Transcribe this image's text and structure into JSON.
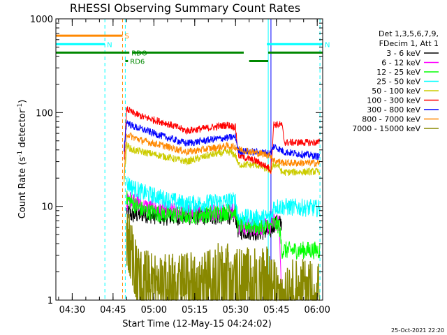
{
  "chart_data": {
    "type": "line",
    "title": "RHESSI Observing Summary Count Rates",
    "xlabel": "Start Time (12-May-15 04:24:02)",
    "ylabel_main": "Count Rate (s",
    "ylabel_sup1": "-1",
    "ylabel_mid": " detector",
    "ylabel_sup2": "-1",
    "ylabel_end": ")",
    "yscale": "log",
    "ylim": [
      1,
      1000
    ],
    "xlim_minutes": [
      0,
      98
    ],
    "x_ticks": [
      {
        "label": "04:30",
        "min": 6
      },
      {
        "label": "04:45",
        "min": 21
      },
      {
        "label": "05:00",
        "min": 36
      },
      {
        "label": "05:15",
        "min": 51
      },
      {
        "label": "05:30",
        "min": 66
      },
      {
        "label": "05:45",
        "min": 81
      },
      {
        "label": "06:00",
        "min": 96
      }
    ],
    "y_ticks": [
      {
        "label": "1",
        "value": 1
      },
      {
        "label": "10",
        "value": 10
      },
      {
        "label": "100",
        "value": 100
      },
      {
        "label": "1000",
        "value": 1000
      }
    ],
    "legend_header": [
      "Det 1,3,5,6,7,9,",
      "FDecim 1, Att 1"
    ],
    "series": [
      {
        "name": "3 - 6 keV",
        "color": "#000000",
        "points": [
          [
            26,
            9
          ],
          [
            28,
            8
          ],
          [
            32,
            8.3
          ],
          [
            40,
            7.7
          ],
          [
            48,
            7.8
          ],
          [
            58,
            7.8
          ],
          [
            66,
            8
          ],
          [
            67,
            5.5
          ],
          [
            72,
            5.4
          ],
          [
            74,
            5.3
          ],
          [
            79,
            5.5
          ],
          [
            80,
            6.5
          ],
          [
            83,
            6.6
          ]
        ]
      },
      {
        "name": "6 - 12 keV",
        "color": "#ff00ff",
        "points": [
          [
            26,
            11
          ],
          [
            28,
            12
          ],
          [
            32,
            10
          ],
          [
            40,
            9
          ],
          [
            48,
            8.4
          ],
          [
            58,
            8.7
          ],
          [
            66,
            9
          ],
          [
            67,
            6.1
          ],
          [
            74,
            6
          ],
          [
            79,
            6
          ],
          [
            80,
            6.8
          ],
          [
            82,
            6.5
          ],
          [
            83,
            1
          ]
        ]
      },
      {
        "name": "12 - 25 keV",
        "color": "#00ff00",
        "points": [
          [
            26,
            12
          ],
          [
            28,
            11
          ],
          [
            32,
            9
          ],
          [
            40,
            8.2
          ],
          [
            48,
            8
          ],
          [
            58,
            8.3
          ],
          [
            66,
            9
          ],
          [
            67,
            6.3
          ],
          [
            74,
            6.2
          ],
          [
            79,
            6
          ],
          [
            80,
            6.6
          ],
          [
            82,
            6.3
          ],
          [
            83,
            3.4
          ],
          [
            97,
            3.4
          ]
        ]
      },
      {
        "name": "25 - 50 keV",
        "color": "#00ffff",
        "points": [
          [
            26,
            18
          ],
          [
            28,
            16
          ],
          [
            32,
            14
          ],
          [
            40,
            12
          ],
          [
            48,
            10.5
          ],
          [
            58,
            11
          ],
          [
            66,
            11.5
          ],
          [
            67,
            7.6
          ],
          [
            74,
            7.5
          ],
          [
            79,
            7.6
          ],
          [
            80,
            10
          ],
          [
            97,
            9.5
          ]
        ]
      },
      {
        "name": "50 - 100 keV",
        "color": "#cccc00",
        "points": [
          [
            25,
            18
          ],
          [
            26,
            45
          ],
          [
            28,
            40
          ],
          [
            32,
            38
          ],
          [
            40,
            34
          ],
          [
            48,
            30
          ],
          [
            58,
            36
          ],
          [
            64,
            38
          ],
          [
            66,
            35
          ],
          [
            67,
            28
          ],
          [
            74,
            27.5
          ],
          [
            79,
            24
          ],
          [
            80,
            28
          ],
          [
            82,
            27
          ],
          [
            83,
            23
          ],
          [
            97,
            23.5
          ]
        ]
      },
      {
        "name": "100 - 300 keV",
        "color": "#ff0000",
        "points": [
          [
            25,
            30
          ],
          [
            26,
            110
          ],
          [
            28,
            100
          ],
          [
            32,
            90
          ],
          [
            40,
            78
          ],
          [
            48,
            64
          ],
          [
            58,
            70
          ],
          [
            63,
            74
          ],
          [
            66,
            70
          ],
          [
            67,
            35
          ],
          [
            74,
            30
          ],
          [
            78,
            26
          ],
          [
            79,
            24
          ],
          [
            80,
            75
          ],
          [
            83,
            74
          ],
          [
            84,
            48
          ],
          [
            97,
            48
          ]
        ]
      },
      {
        "name": "300 - 800 keV",
        "color": "#0000ff",
        "points": [
          [
            25,
            40
          ],
          [
            26,
            80
          ],
          [
            28,
            72
          ],
          [
            32,
            66
          ],
          [
            40,
            55
          ],
          [
            48,
            47
          ],
          [
            58,
            52
          ],
          [
            66,
            55
          ],
          [
            67,
            39
          ],
          [
            79,
            37
          ],
          [
            80,
            44
          ],
          [
            84,
            38
          ],
          [
            97,
            34
          ]
        ]
      },
      {
        "name": "800 - 7000 keV",
        "color": "#ff8800",
        "points": [
          [
            25,
            20
          ],
          [
            26,
            60
          ],
          [
            28,
            55
          ],
          [
            32,
            50
          ],
          [
            40,
            44
          ],
          [
            48,
            38
          ],
          [
            58,
            42
          ],
          [
            63,
            44
          ],
          [
            66,
            43
          ],
          [
            67,
            41
          ],
          [
            74,
            37
          ],
          [
            79,
            35
          ],
          [
            80,
            31
          ],
          [
            84,
            29
          ],
          [
            97,
            29
          ]
        ]
      },
      {
        "name": "7000 - 15000 keV",
        "color": "#888800",
        "points": [
          [
            26,
            6
          ],
          [
            30,
            2.3
          ],
          [
            34,
            2
          ],
          [
            40,
            1.8
          ],
          [
            48,
            1.9
          ],
          [
            56,
            2.2
          ],
          [
            62,
            2.5
          ],
          [
            66,
            2.5
          ],
          [
            67,
            2.1
          ],
          [
            74,
            2.2
          ],
          [
            79,
            2.2
          ],
          [
            80,
            1.6
          ],
          [
            97,
            1.6
          ]
        ]
      }
    ],
    "flag_lines": [
      {
        "label": "S",
        "color": "#ff8800",
        "x0": 0,
        "x1": 24.5,
        "y_frac": 0.06
      },
      {
        "label": "N",
        "color": "#00ffff",
        "x0": 0,
        "x1": 18,
        "y_frac": 0.09
      },
      {
        "label": "N",
        "color": "#00ffff",
        "x0": 77.5,
        "x1": 98,
        "y_frac": 0.09
      },
      {
        "label": "RDO",
        "color": "#008800",
        "x0": 0,
        "x1": 27,
        "y_frac": 0.12
      },
      {
        "label": "",
        "color": "#008800",
        "x0": 28,
        "x1": 69,
        "y_frac": 0.12
      },
      {
        "label": "",
        "color": "#008800",
        "x0": 78,
        "x1": 98,
        "y_frac": 0.12
      },
      {
        "label": "RD6",
        "color": "#008800",
        "x0": 25.5,
        "x1": 26.5,
        "y_frac": 0.15
      },
      {
        "label": "",
        "color": "#008800",
        "x0": 71,
        "x1": 78,
        "y_frac": 0.15
      }
    ],
    "vertical_lines": [
      {
        "min": 0,
        "color": "#00ffff",
        "dash": false
      },
      {
        "min": 18,
        "color": "#00ffff",
        "dash": true
      },
      {
        "min": 24.5,
        "color": "#ff8800",
        "dash": true
      },
      {
        "min": 25.5,
        "color": "#00ffff",
        "dash": true
      },
      {
        "min": 78,
        "color": "#00ffff",
        "dash": false
      },
      {
        "min": 79,
        "color": "#0000ff",
        "dash": false
      },
      {
        "min": 97,
        "color": "#00ffff",
        "dash": true
      }
    ],
    "timestamp": "25-Oct-2021 22:20"
  }
}
